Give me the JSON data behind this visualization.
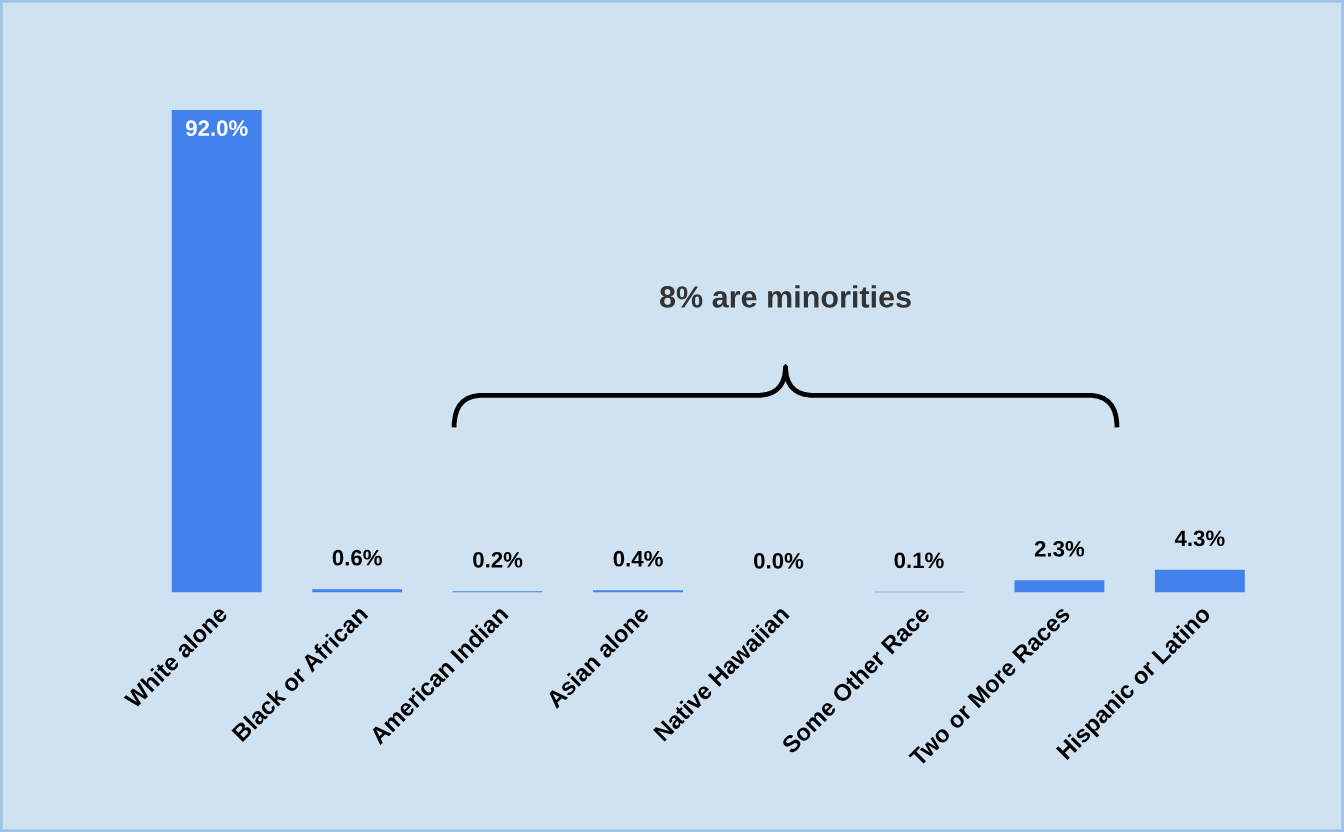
{
  "chart_data": {
    "type": "bar",
    "categories": [
      "White alone",
      "Black or African",
      "American Indian",
      "Asian alone",
      "Native Hawaiian",
      "Some Other Race",
      "Two or More Races",
      "Hispanic or Latino"
    ],
    "values": [
      92.0,
      0.6,
      0.2,
      0.4,
      0.0,
      0.1,
      2.3,
      4.3
    ],
    "value_labels": [
      "92.0%",
      "0.6%",
      "0.2%",
      "0.4%",
      "0.0%",
      "0.1%",
      "2.3%",
      "4.3%"
    ],
    "color": "#4382ec",
    "annotations": [
      "8% are minorities"
    ],
    "grid": false
  }
}
